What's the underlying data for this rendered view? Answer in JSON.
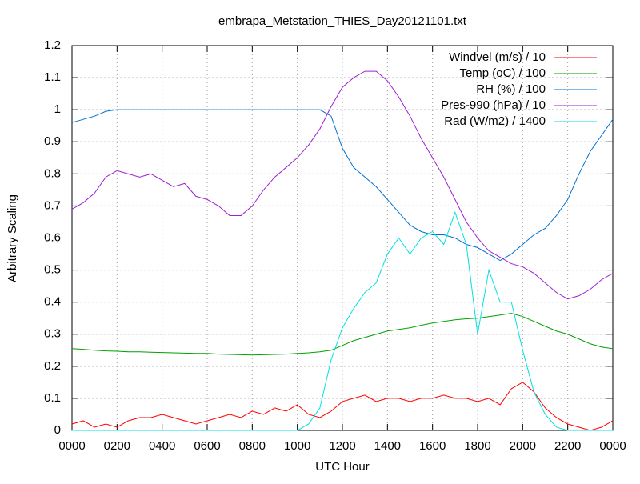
{
  "chart_data": {
    "type": "line",
    "title": "embrapa_Metstation_THIES_Day20121101.txt",
    "x_label": "UTC Hour",
    "y_label": "Arbitrary Scaling",
    "grid": true,
    "legend": "top-right",
    "xlim": [
      0,
      24
    ],
    "xticks": [
      {
        "value": 0,
        "label": "0000"
      },
      {
        "value": 2,
        "label": "0200"
      },
      {
        "value": 4,
        "label": "0400"
      },
      {
        "value": 6,
        "label": "0600"
      },
      {
        "value": 8,
        "label": "0800"
      },
      {
        "value": 10,
        "label": "1000"
      },
      {
        "value": 12,
        "label": "1200"
      },
      {
        "value": 14,
        "label": "1400"
      },
      {
        "value": 16,
        "label": "1600"
      },
      {
        "value": 18,
        "label": "1800"
      },
      {
        "value": 20,
        "label": "2000"
      },
      {
        "value": 22,
        "label": "2200"
      },
      {
        "value": 24,
        "label": "0000"
      }
    ],
    "ylim": [
      0,
      1.2
    ],
    "yticks": [
      0,
      0.1,
      0.2,
      0.3,
      0.4,
      0.5,
      0.6,
      0.7,
      0.8,
      0.9,
      1,
      1.1,
      1.2
    ],
    "x": [
      0,
      0.5,
      1,
      1.5,
      2,
      2.5,
      3,
      3.5,
      4,
      4.5,
      5,
      5.5,
      6,
      6.5,
      7,
      7.5,
      8,
      8.5,
      9,
      9.5,
      10,
      10.5,
      11,
      11.5,
      12,
      12.5,
      13,
      13.5,
      14,
      14.5,
      15,
      15.5,
      16,
      16.5,
      17,
      17.5,
      18,
      18.5,
      19,
      19.5,
      20,
      20.5,
      21,
      21.5,
      22,
      22.5,
      23,
      23.5,
      24
    ],
    "series": [
      {
        "name": "Windvel (m/s) / 10",
        "color": "#ff0000",
        "values": [
          0.02,
          0.03,
          0.01,
          0.02,
          0.01,
          0.03,
          0.04,
          0.04,
          0.05,
          0.04,
          0.03,
          0.02,
          0.03,
          0.04,
          0.05,
          0.04,
          0.06,
          0.05,
          0.07,
          0.06,
          0.08,
          0.05,
          0.04,
          0.06,
          0.09,
          0.1,
          0.11,
          0.09,
          0.1,
          0.1,
          0.09,
          0.1,
          0.1,
          0.11,
          0.1,
          0.1,
          0.09,
          0.1,
          0.08,
          0.13,
          0.15,
          0.12,
          0.07,
          0.04,
          0.02,
          0.01,
          0,
          0.01,
          0.03
        ]
      },
      {
        "name": "Temp (oC) / 100",
        "color": "#00a000",
        "values": [
          0.255,
          0.253,
          0.25,
          0.248,
          0.247,
          0.245,
          0.245,
          0.244,
          0.243,
          0.242,
          0.241,
          0.24,
          0.24,
          0.238,
          0.237,
          0.236,
          0.235,
          0.236,
          0.237,
          0.238,
          0.24,
          0.242,
          0.245,
          0.25,
          0.265,
          0.28,
          0.29,
          0.3,
          0.31,
          0.315,
          0.32,
          0.328,
          0.335,
          0.34,
          0.345,
          0.348,
          0.35,
          0.355,
          0.36,
          0.365,
          0.355,
          0.34,
          0.325,
          0.31,
          0.3,
          0.285,
          0.27,
          0.26,
          0.255
        ]
      },
      {
        "name": "RH (%) / 100",
        "color": "#0070d0",
        "values": [
          0.96,
          0.97,
          0.98,
          0.995,
          1,
          1,
          1,
          1,
          1,
          1,
          1,
          1,
          1,
          1,
          1,
          1,
          1,
          1,
          1,
          1,
          1,
          1,
          1,
          0.98,
          0.88,
          0.82,
          0.79,
          0.76,
          0.72,
          0.68,
          0.64,
          0.62,
          0.61,
          0.61,
          0.6,
          0.58,
          0.57,
          0.55,
          0.53,
          0.55,
          0.58,
          0.61,
          0.63,
          0.67,
          0.72,
          0.8,
          0.87,
          0.92,
          0.97
        ]
      },
      {
        "name": "Pres-990 (hPa) / 10",
        "color": "#a020d0",
        "values": [
          0.69,
          0.71,
          0.74,
          0.79,
          0.81,
          0.8,
          0.79,
          0.8,
          0.78,
          0.76,
          0.77,
          0.73,
          0.72,
          0.7,
          0.67,
          0.67,
          0.7,
          0.75,
          0.79,
          0.82,
          0.85,
          0.89,
          0.94,
          1.01,
          1.07,
          1.1,
          1.12,
          1.12,
          1.09,
          1.04,
          0.98,
          0.91,
          0.85,
          0.79,
          0.72,
          0.65,
          0.6,
          0.56,
          0.54,
          0.52,
          0.51,
          0.49,
          0.46,
          0.43,
          0.41,
          0.42,
          0.44,
          0.47,
          0.49
        ]
      },
      {
        "name": "Rad (W/m2) / 1400",
        "color": "#00e0e0",
        "values": [
          0,
          0,
          0,
          0,
          0,
          0,
          0,
          0,
          0,
          0,
          0,
          0,
          0,
          0,
          0,
          0,
          0,
          0,
          0,
          0,
          0,
          0.02,
          0.07,
          0.22,
          0.32,
          0.38,
          0.43,
          0.46,
          0.55,
          0.6,
          0.55,
          0.6,
          0.62,
          0.58,
          0.68,
          0.58,
          0.3,
          0.5,
          0.4,
          0.4,
          0.25,
          0.12,
          0.05,
          0.01,
          0,
          0,
          0,
          0,
          0
        ]
      }
    ]
  }
}
